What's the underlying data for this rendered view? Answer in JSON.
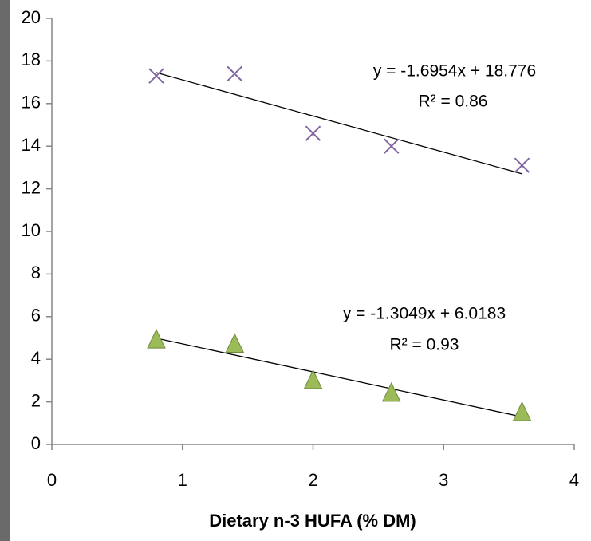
{
  "chart_data": {
    "type": "scatter",
    "x_label": "Dietary n-3 HUFA (% DM)",
    "x": [
      0.8,
      1.4,
      2.0,
      2.6,
      3.6
    ],
    "series": [
      {
        "color": "#8064a2",
        "marker": "x",
        "trendline": true,
        "values": [
          17.3,
          17.4,
          14.6,
          14.0,
          13.1
        ]
      },
      {
        "color": "#9bbb59",
        "marker": "triangle",
        "trendline": true,
        "values": [
          4.9,
          4.7,
          3.0,
          2.4,
          1.5
        ]
      }
    ],
    "annotations": [
      "y = -1.6954x + 18.776",
      "R² = 0.86",
      "y = -1.3049x + 6.0183",
      "R² = 0.93"
    ],
    "xlim": [
      0,
      4
    ],
    "xticks": [
      0,
      1,
      2,
      3,
      4
    ],
    "ylim": [
      0,
      20
    ],
    "yticks": [
      0,
      2,
      4,
      6,
      8,
      10,
      12,
      14,
      16,
      18,
      20
    ],
    "grid": false
  }
}
